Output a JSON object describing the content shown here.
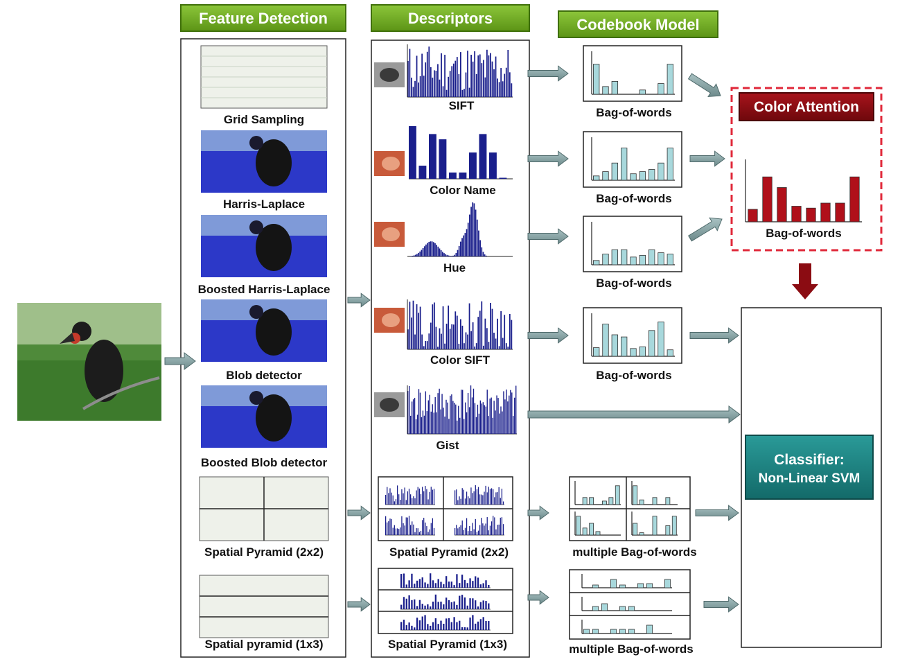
{
  "headers": {
    "feature_detection": "Feature Detection",
    "descriptors": "Descriptors",
    "codebook_model": "Codebook Model",
    "color_attention": "Color Attention"
  },
  "detectors": [
    "Grid Sampling",
    "Harris-Laplace",
    "Boosted Harris-Laplace",
    "Blob detector",
    "Boosted Blob detector",
    "Spatial Pyramid (2x2)",
    "Spatial pyramid (1x3)"
  ],
  "descriptors": [
    "SIFT",
    "Color Name",
    "Hue",
    "Color SIFT",
    "Gist",
    "Spatial Pyramid (2x2)",
    "Spatial Pyramid (1x3)"
  ],
  "codebook": {
    "bow_label": "Bag-of-words",
    "multiple_label": "multiple Bag-of-words"
  },
  "classifier": {
    "title": "Classifier:",
    "subtitle": "Non-Linear SVM"
  },
  "colors": {
    "header_green": "#6aa81e",
    "header_border": "#3f6f0a",
    "descriptor_bar": "#1a1f8c",
    "bow_bar": "#a8d8dc",
    "attention_bar": "#b0101a",
    "attention_header": "#8b0c12",
    "attention_border": "#e0283a",
    "classifier_teal": "#1a7f7e",
    "arrow_fill": "#8aa5a6",
    "down_arrow": "#8b0c12"
  }
}
